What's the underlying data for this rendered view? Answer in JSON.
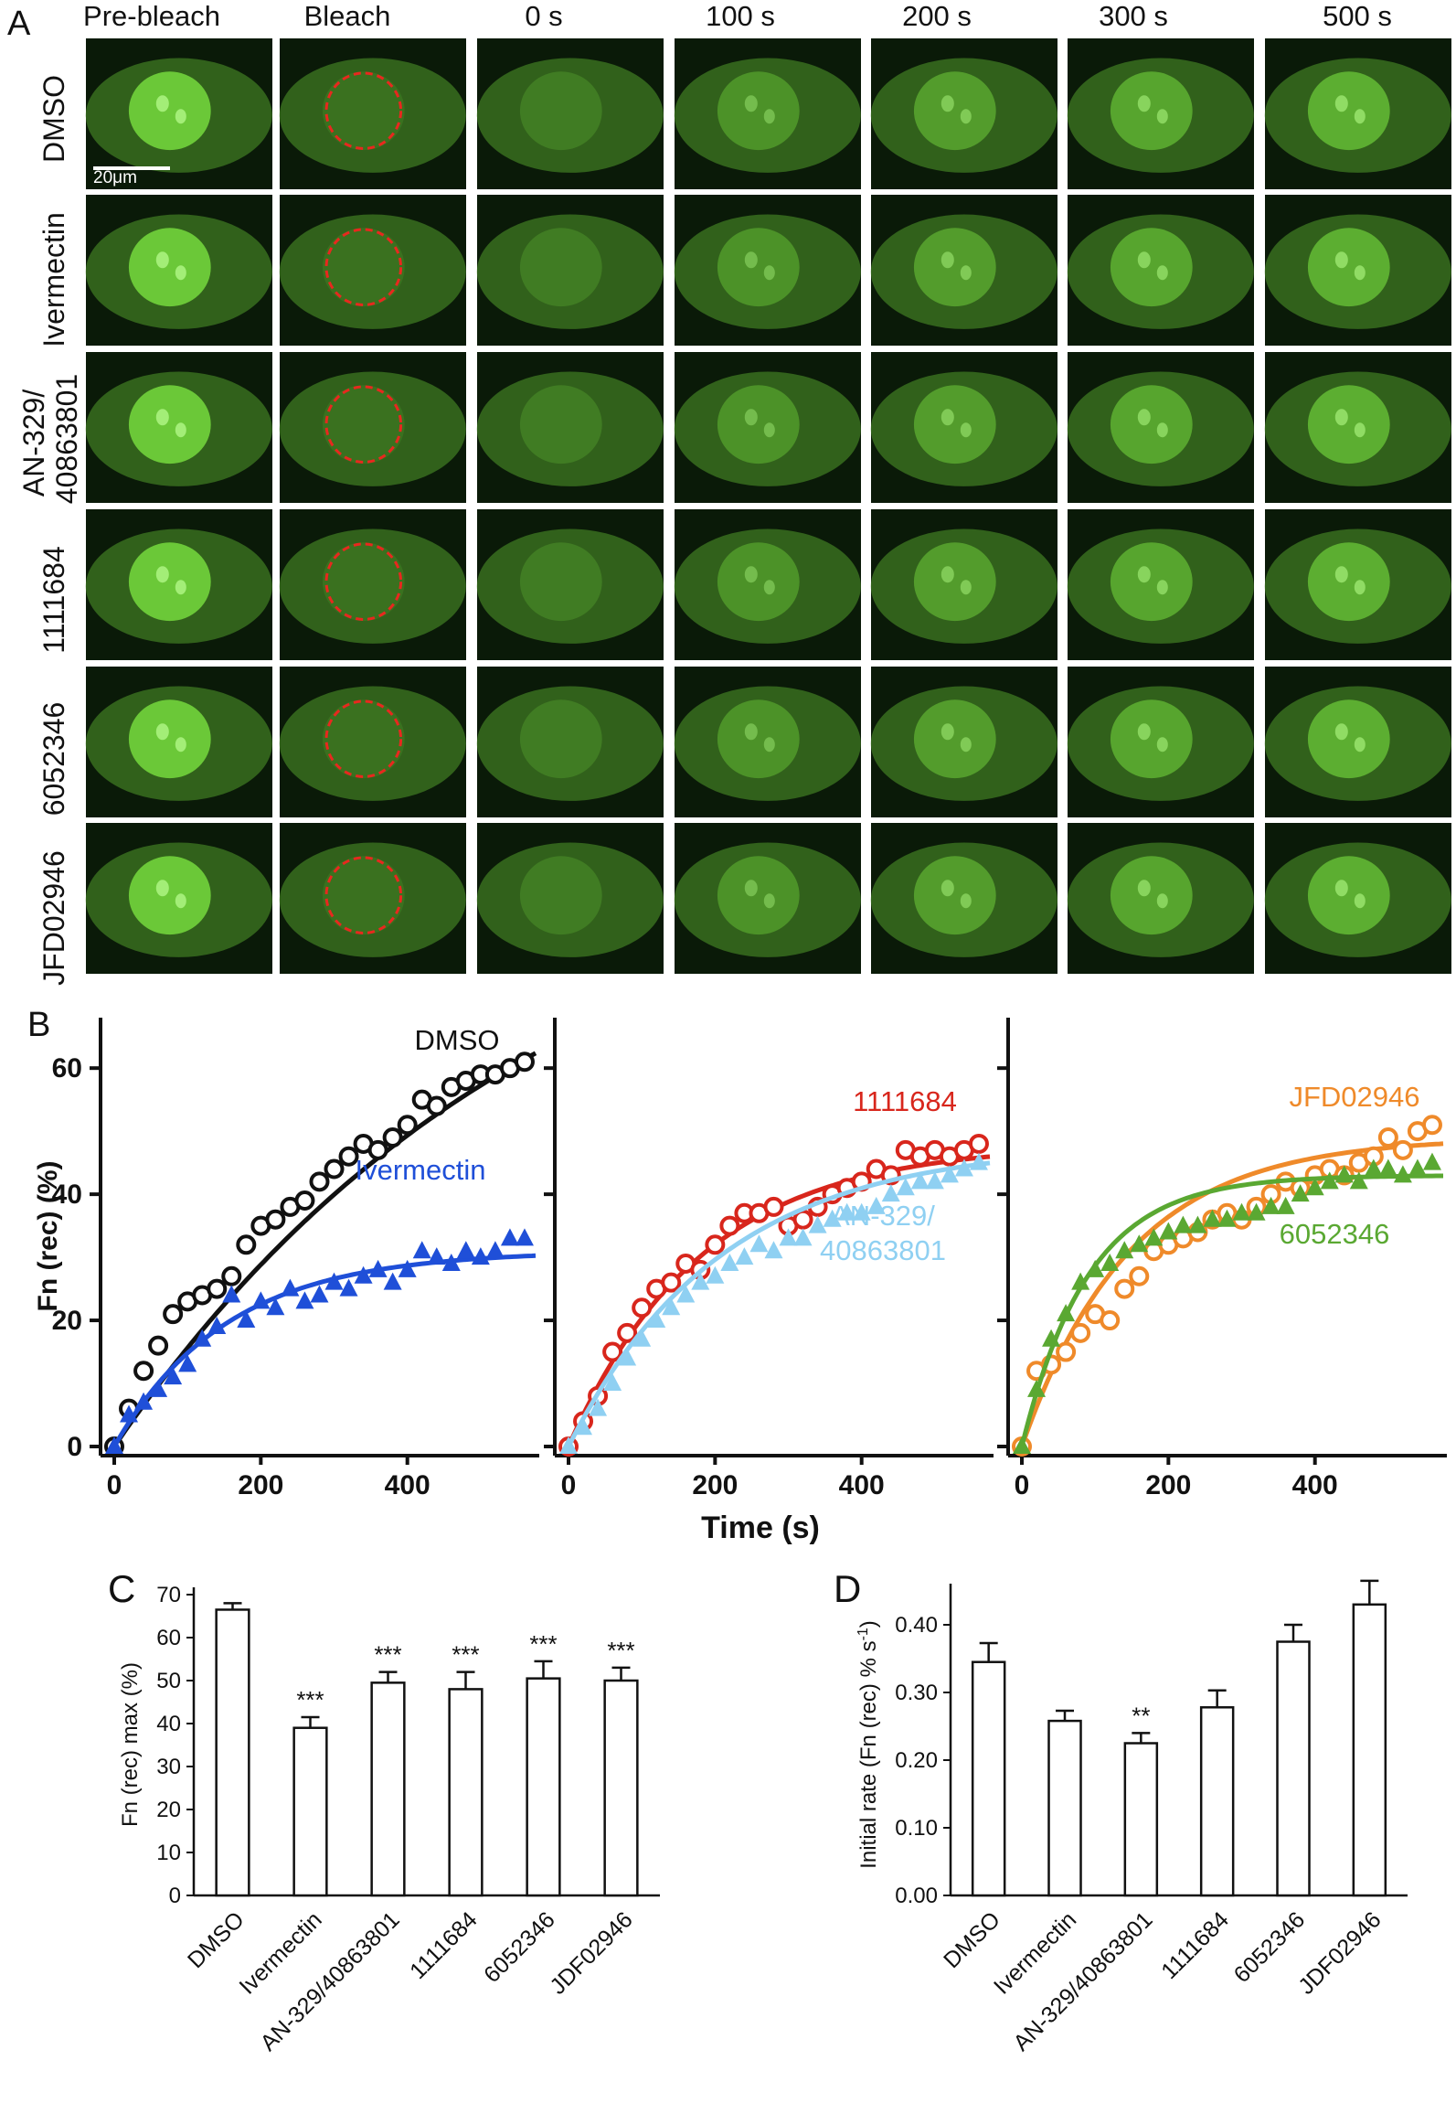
{
  "panel_labels": {
    "a": "A",
    "b": "B",
    "c": "C",
    "d": "D"
  },
  "panel_a": {
    "columns": [
      "Pre-bleach",
      "Bleach",
      "0 s",
      "100 s",
      "200 s",
      "300 s",
      "500 s"
    ],
    "rows": [
      "DMSO",
      "Ivermectin",
      "AN-329/\n40863801",
      "1111684",
      "6052346",
      "JFD02946"
    ],
    "scale_bar": "20μm",
    "colors": {
      "cell": "#3f7a22",
      "nucleus": "#6fce3a",
      "bleach_roi": "#e8281e",
      "background": "#0a1a08"
    }
  },
  "chart_data": [
    {
      "type": "scatter",
      "title": "B (left)",
      "xlabel": "Time (s)",
      "ylabel": "Fn (rec) (%)",
      "xlim": [
        0,
        580
      ],
      "ylim": [
        0,
        68
      ],
      "xticks": [
        0,
        200,
        400
      ],
      "yticks": [
        0,
        20,
        40,
        60
      ],
      "series": [
        {
          "name": "DMSO",
          "color": "#111111",
          "marker": "circle",
          "x": [
            0,
            20,
            40,
            60,
            80,
            100,
            120,
            140,
            160,
            180,
            200,
            220,
            240,
            260,
            280,
            300,
            320,
            340,
            360,
            380,
            400,
            420,
            440,
            460,
            480,
            500,
            520,
            540,
            560
          ],
          "y": [
            0,
            6,
            12,
            16,
            21,
            23,
            24,
            25,
            27,
            32,
            35,
            36,
            38,
            39,
            42,
            44,
            46,
            48,
            47,
            49,
            51,
            55,
            54,
            57,
            58,
            59,
            59,
            60,
            61
          ],
          "fit": {
            "plateau": 100,
            "k": 0.0017
          }
        },
        {
          "name": "Ivermectin",
          "color": "#1f4fd8",
          "marker": "triangle",
          "x": [
            0,
            20,
            40,
            60,
            80,
            100,
            120,
            140,
            160,
            180,
            200,
            220,
            240,
            260,
            280,
            300,
            320,
            340,
            360,
            380,
            400,
            420,
            440,
            460,
            480,
            500,
            520,
            540,
            560
          ],
          "y": [
            0,
            5,
            7,
            9,
            11,
            13,
            17,
            19,
            24,
            20,
            23,
            22,
            25,
            23,
            24,
            26,
            25,
            27,
            28,
            26,
            28,
            31,
            30,
            29,
            31,
            30,
            31,
            33,
            33
          ],
          "fit": {
            "plateau": 31,
            "k": 0.0065
          }
        }
      ],
      "annotations": [
        "DMSO",
        "Ivermectin"
      ]
    },
    {
      "type": "scatter",
      "title": "B (middle)",
      "xlabel": "Time (s)",
      "ylabel": "",
      "xlim": [
        0,
        580
      ],
      "ylim": [
        0,
        68
      ],
      "xticks": [
        0,
        200,
        400
      ],
      "yticks": [
        0,
        20,
        40,
        60
      ],
      "series": [
        {
          "name": "1111684",
          "color": "#d8261c",
          "marker": "circle",
          "x": [
            0,
            20,
            40,
            60,
            80,
            100,
            120,
            140,
            160,
            180,
            200,
            220,
            240,
            260,
            280,
            300,
            320,
            340,
            360,
            380,
            400,
            420,
            440,
            460,
            480,
            500,
            520,
            540,
            560
          ],
          "y": [
            0,
            4,
            8,
            15,
            18,
            22,
            25,
            26,
            29,
            28,
            32,
            35,
            37,
            37,
            38,
            35,
            36,
            38,
            40,
            41,
            42,
            44,
            43,
            47,
            46,
            47,
            46,
            47,
            48
          ],
          "fit": {
            "plateau": 48,
            "k": 0.0055
          }
        },
        {
          "name": "AN-329/\n40863801",
          "color": "#8fd0f2",
          "marker": "triangle",
          "x": [
            0,
            20,
            40,
            60,
            80,
            100,
            120,
            140,
            160,
            180,
            200,
            220,
            240,
            260,
            280,
            300,
            320,
            340,
            360,
            380,
            400,
            420,
            440,
            460,
            480,
            500,
            520,
            540,
            560
          ],
          "y": [
            0,
            3,
            6,
            10,
            14,
            17,
            20,
            22,
            24,
            26,
            27,
            29,
            30,
            32,
            31,
            33,
            33,
            35,
            36,
            37,
            37,
            38,
            40,
            41,
            42,
            42,
            43,
            44,
            45
          ],
          "fit": {
            "plateau": 48,
            "k": 0.0048
          }
        }
      ],
      "annotations": [
        "1111684",
        "AN-329/\n40863801"
      ]
    },
    {
      "type": "scatter",
      "title": "B (right)",
      "xlabel": "Time (s)",
      "ylabel": "",
      "xlim": [
        0,
        580
      ],
      "ylim": [
        0,
        68
      ],
      "xticks": [
        0,
        200,
        400
      ],
      "yticks": [
        0,
        20,
        40,
        60
      ],
      "series": [
        {
          "name": "JFD02946",
          "color": "#ef8a2a",
          "marker": "circle",
          "x": [
            0,
            20,
            40,
            60,
            80,
            100,
            120,
            140,
            160,
            180,
            200,
            220,
            240,
            260,
            280,
            300,
            320,
            340,
            360,
            380,
            400,
            420,
            440,
            460,
            480,
            500,
            520,
            540,
            560
          ],
          "y": [
            0,
            12,
            13,
            15,
            18,
            21,
            20,
            25,
            27,
            31,
            32,
            33,
            34,
            36,
            37,
            36,
            38,
            40,
            42,
            41,
            43,
            44,
            43,
            45,
            46,
            49,
            47,
            50,
            51
          ],
          "fit": {
            "plateau": 49,
            "k": 0.0068
          }
        },
        {
          "name": "6052346",
          "color": "#5aa832",
          "marker": "triangle",
          "x": [
            0,
            20,
            40,
            60,
            80,
            100,
            120,
            140,
            160,
            180,
            200,
            220,
            240,
            260,
            280,
            300,
            320,
            340,
            360,
            380,
            400,
            420,
            440,
            460,
            480,
            500,
            520,
            540,
            560
          ],
          "y": [
            0,
            9,
            17,
            21,
            26,
            28,
            29,
            31,
            32,
            33,
            34,
            35,
            35,
            36,
            36,
            37,
            37,
            38,
            38,
            40,
            41,
            42,
            43,
            42,
            44,
            44,
            43,
            44,
            45
          ],
          "fit": {
            "plateau": 43,
            "k": 0.011
          }
        }
      ],
      "annotations": [
        "JFD02946",
        "6052346"
      ]
    },
    {
      "type": "bar",
      "title": "C",
      "xlabel": "",
      "ylabel": "Fn (rec) max (%)",
      "categories": [
        "DMSO",
        "Ivermectin",
        "AN-329/40863801",
        "1111684",
        "6052346",
        "JDF02946"
      ],
      "values": [
        66.5,
        39,
        49.5,
        48,
        50.5,
        50
      ],
      "errors": [
        1.5,
        2.5,
        2.5,
        4,
        4,
        3
      ],
      "significance": [
        "",
        "***",
        "***",
        "***",
        "***",
        "***"
      ],
      "ylim": [
        0,
        70
      ],
      "yticks": [
        0,
        10,
        20,
        30,
        40,
        50,
        60,
        70
      ],
      "ytick_labels": [
        "0",
        "10",
        "20",
        "30",
        "40",
        "50",
        "60",
        "70"
      ]
    },
    {
      "type": "bar",
      "title": "D",
      "xlabel": "",
      "ylabel": "Initial rate (Fn (rec) % s",
      "ylabel_sup": "-1",
      "ylabel_close": ")",
      "categories": [
        "DMSO",
        "Ivermectin",
        "AN-329/40863801",
        "1111684",
        "6052346",
        "JDF02946"
      ],
      "values": [
        0.345,
        0.258,
        0.225,
        0.278,
        0.375,
        0.43
      ],
      "errors": [
        0.028,
        0.015,
        0.015,
        0.025,
        0.025,
        0.035
      ],
      "significance": [
        "",
        "",
        "**",
        "",
        "",
        ""
      ],
      "ylim": [
        0,
        0.45
      ],
      "yticks": [
        0,
        0.1,
        0.2,
        0.3,
        0.4
      ],
      "ytick_labels": [
        "0.00",
        "0.10",
        "0.20",
        "0.30",
        "0.40"
      ]
    }
  ]
}
